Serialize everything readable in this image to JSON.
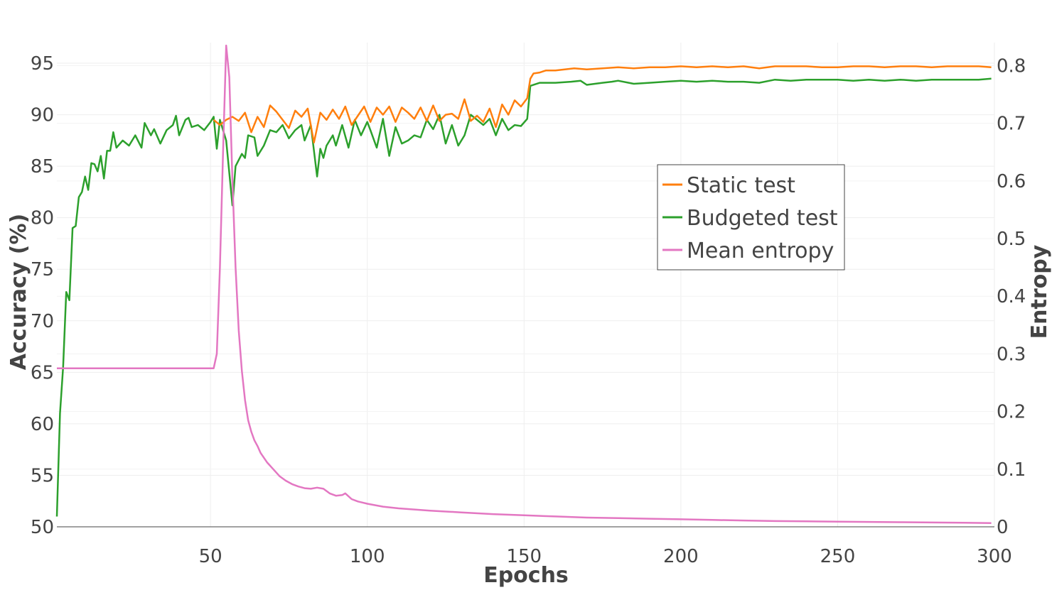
{
  "chart_data": {
    "type": "line",
    "xlabel": "Epochs",
    "ylabel_left": "Accuracy (%)",
    "ylabel_right": "Entropy",
    "xlim": [
      1,
      300
    ],
    "ylim_left": [
      50,
      97
    ],
    "ylim_right": [
      0,
      0.84
    ],
    "x_ticks": [
      50,
      100,
      150,
      200,
      250,
      300
    ],
    "y_ticks_left": [
      50,
      55,
      60,
      65,
      70,
      75,
      80,
      85,
      90,
      95
    ],
    "y_ticks_right": [
      0,
      0.1,
      0.2,
      0.3,
      0.4,
      0.5,
      0.6,
      0.7,
      0.8
    ],
    "grid": true,
    "legend_position": "center-right",
    "series": [
      {
        "name": "Static test",
        "axis": "left",
        "color": "#ff7f0e",
        "points": [
          [
            51,
            89.5
          ],
          [
            53,
            89.0
          ],
          [
            55,
            89.5
          ],
          [
            57,
            89.8
          ],
          [
            59,
            89.4
          ],
          [
            61,
            90.2
          ],
          [
            63,
            88.3
          ],
          [
            65,
            89.8
          ],
          [
            67,
            88.8
          ],
          [
            69,
            90.9
          ],
          [
            71,
            90.3
          ],
          [
            73,
            89.5
          ],
          [
            75,
            88.7
          ],
          [
            77,
            90.4
          ],
          [
            79,
            89.8
          ],
          [
            81,
            90.6
          ],
          [
            83,
            87.3
          ],
          [
            85,
            90.2
          ],
          [
            87,
            89.5
          ],
          [
            89,
            90.5
          ],
          [
            91,
            89.6
          ],
          [
            93,
            90.8
          ],
          [
            95,
            89.0
          ],
          [
            97,
            89.9
          ],
          [
            99,
            90.8
          ],
          [
            101,
            89.3
          ],
          [
            103,
            90.7
          ],
          [
            105,
            90.0
          ],
          [
            107,
            90.8
          ],
          [
            109,
            89.3
          ],
          [
            111,
            90.7
          ],
          [
            113,
            90.2
          ],
          [
            115,
            89.6
          ],
          [
            117,
            90.7
          ],
          [
            119,
            89.4
          ],
          [
            121,
            90.9
          ],
          [
            123,
            89.4
          ],
          [
            125,
            90.0
          ],
          [
            127,
            90.1
          ],
          [
            129,
            89.6
          ],
          [
            131,
            91.5
          ],
          [
            133,
            89.4
          ],
          [
            135,
            89.9
          ],
          [
            137,
            89.3
          ],
          [
            139,
            90.6
          ],
          [
            141,
            88.8
          ],
          [
            143,
            91.0
          ],
          [
            145,
            90.0
          ],
          [
            147,
            91.4
          ],
          [
            149,
            90.8
          ],
          [
            151,
            91.6
          ],
          [
            152,
            93.5
          ],
          [
            153,
            94.0
          ],
          [
            155,
            94.1
          ],
          [
            157,
            94.3
          ],
          [
            160,
            94.3
          ],
          [
            163,
            94.4
          ],
          [
            166,
            94.5
          ],
          [
            170,
            94.4
          ],
          [
            175,
            94.5
          ],
          [
            180,
            94.6
          ],
          [
            185,
            94.5
          ],
          [
            190,
            94.6
          ],
          [
            195,
            94.6
          ],
          [
            200,
            94.7
          ],
          [
            205,
            94.6
          ],
          [
            210,
            94.7
          ],
          [
            215,
            94.6
          ],
          [
            220,
            94.7
          ],
          [
            225,
            94.5
          ],
          [
            230,
            94.7
          ],
          [
            235,
            94.7
          ],
          [
            240,
            94.7
          ],
          [
            245,
            94.6
          ],
          [
            250,
            94.6
          ],
          [
            255,
            94.7
          ],
          [
            260,
            94.7
          ],
          [
            265,
            94.6
          ],
          [
            270,
            94.7
          ],
          [
            275,
            94.7
          ],
          [
            280,
            94.6
          ],
          [
            285,
            94.7
          ],
          [
            290,
            94.7
          ],
          [
            295,
            94.7
          ],
          [
            299,
            94.6
          ]
        ]
      },
      {
        "name": "Budgeted test",
        "axis": "left",
        "color": "#2ca02c",
        "points": [
          [
            1,
            51.0
          ],
          [
            2,
            61.0
          ],
          [
            3,
            65.5
          ],
          [
            4,
            72.8
          ],
          [
            5,
            72.0
          ],
          [
            6,
            79.0
          ],
          [
            7,
            79.2
          ],
          [
            8,
            82.0
          ],
          [
            9,
            82.5
          ],
          [
            10,
            84.0
          ],
          [
            11,
            82.7
          ],
          [
            12,
            85.3
          ],
          [
            13,
            85.2
          ],
          [
            14,
            84.5
          ],
          [
            15,
            86.0
          ],
          [
            16,
            83.8
          ],
          [
            17,
            86.5
          ],
          [
            18,
            86.5
          ],
          [
            19,
            88.3
          ],
          [
            20,
            86.8
          ],
          [
            22,
            87.5
          ],
          [
            24,
            87.0
          ],
          [
            26,
            88.0
          ],
          [
            28,
            86.8
          ],
          [
            29,
            89.2
          ],
          [
            31,
            88.0
          ],
          [
            32,
            88.6
          ],
          [
            34,
            87.2
          ],
          [
            36,
            88.5
          ],
          [
            38,
            89.0
          ],
          [
            39,
            89.9
          ],
          [
            40,
            88.0
          ],
          [
            42,
            89.5
          ],
          [
            43,
            89.7
          ],
          [
            44,
            88.8
          ],
          [
            46,
            89.0
          ],
          [
            48,
            88.5
          ],
          [
            50,
            89.3
          ],
          [
            51,
            89.8
          ],
          [
            52,
            86.7
          ],
          [
            53,
            89.5
          ],
          [
            55,
            87.5
          ],
          [
            57,
            81.2
          ],
          [
            58,
            85.0
          ],
          [
            60,
            86.2
          ],
          [
            61,
            85.8
          ],
          [
            62,
            88.0
          ],
          [
            64,
            87.8
          ],
          [
            65,
            86.0
          ],
          [
            67,
            87.0
          ],
          [
            69,
            88.5
          ],
          [
            71,
            88.3
          ],
          [
            73,
            89.0
          ],
          [
            75,
            87.7
          ],
          [
            77,
            88.5
          ],
          [
            79,
            89.0
          ],
          [
            80,
            87.5
          ],
          [
            82,
            89.0
          ],
          [
            84,
            84.0
          ],
          [
            85,
            86.7
          ],
          [
            86,
            85.8
          ],
          [
            87,
            87.0
          ],
          [
            89,
            88.0
          ],
          [
            90,
            87.0
          ],
          [
            92,
            89.0
          ],
          [
            94,
            86.8
          ],
          [
            96,
            89.5
          ],
          [
            98,
            88.0
          ],
          [
            100,
            89.3
          ],
          [
            101,
            88.5
          ],
          [
            103,
            86.8
          ],
          [
            105,
            89.6
          ],
          [
            107,
            86.0
          ],
          [
            109,
            88.8
          ],
          [
            111,
            87.2
          ],
          [
            113,
            87.5
          ],
          [
            115,
            88.0
          ],
          [
            117,
            87.8
          ],
          [
            119,
            89.5
          ],
          [
            121,
            88.6
          ],
          [
            123,
            90.0
          ],
          [
            125,
            87.2
          ],
          [
            127,
            89.0
          ],
          [
            129,
            87.0
          ],
          [
            131,
            88.0
          ],
          [
            133,
            90.0
          ],
          [
            135,
            89.5
          ],
          [
            137,
            89.0
          ],
          [
            139,
            89.6
          ],
          [
            141,
            88.0
          ],
          [
            143,
            89.6
          ],
          [
            145,
            88.5
          ],
          [
            147,
            89.0
          ],
          [
            149,
            88.9
          ],
          [
            151,
            89.6
          ],
          [
            152,
            92.8
          ],
          [
            155,
            93.1
          ],
          [
            160,
            93.1
          ],
          [
            165,
            93.2
          ],
          [
            168,
            93.3
          ],
          [
            170,
            92.9
          ],
          [
            175,
            93.1
          ],
          [
            178,
            93.2
          ],
          [
            180,
            93.3
          ],
          [
            185,
            93.0
          ],
          [
            190,
            93.1
          ],
          [
            195,
            93.2
          ],
          [
            200,
            93.3
          ],
          [
            205,
            93.2
          ],
          [
            210,
            93.3
          ],
          [
            215,
            93.2
          ],
          [
            220,
            93.2
          ],
          [
            225,
            93.1
          ],
          [
            230,
            93.4
          ],
          [
            235,
            93.3
          ],
          [
            240,
            93.4
          ],
          [
            245,
            93.4
          ],
          [
            250,
            93.4
          ],
          [
            255,
            93.3
          ],
          [
            260,
            93.4
          ],
          [
            265,
            93.3
          ],
          [
            270,
            93.4
          ],
          [
            275,
            93.3
          ],
          [
            280,
            93.4
          ],
          [
            285,
            93.4
          ],
          [
            290,
            93.4
          ],
          [
            295,
            93.4
          ],
          [
            299,
            93.5
          ]
        ]
      },
      {
        "name": "Mean entropy",
        "axis": "right",
        "color": "#e377c2",
        "points": [
          [
            1,
            0.275
          ],
          [
            10,
            0.275
          ],
          [
            20,
            0.275
          ],
          [
            30,
            0.275
          ],
          [
            40,
            0.275
          ],
          [
            50,
            0.275
          ],
          [
            51,
            0.275
          ],
          [
            52,
            0.3
          ],
          [
            53,
            0.45
          ],
          [
            54,
            0.65
          ],
          [
            55,
            0.835
          ],
          [
            56,
            0.78
          ],
          [
            57,
            0.6
          ],
          [
            58,
            0.45
          ],
          [
            59,
            0.34
          ],
          [
            60,
            0.27
          ],
          [
            61,
            0.22
          ],
          [
            62,
            0.185
          ],
          [
            63,
            0.165
          ],
          [
            64,
            0.15
          ],
          [
            65,
            0.14
          ],
          [
            66,
            0.128
          ],
          [
            68,
            0.112
          ],
          [
            70,
            0.1
          ],
          [
            72,
            0.088
          ],
          [
            74,
            0.08
          ],
          [
            76,
            0.074
          ],
          [
            78,
            0.07
          ],
          [
            80,
            0.067
          ],
          [
            82,
            0.066
          ],
          [
            84,
            0.068
          ],
          [
            86,
            0.066
          ],
          [
            88,
            0.058
          ],
          [
            90,
            0.054
          ],
          [
            92,
            0.055
          ],
          [
            93,
            0.058
          ],
          [
            95,
            0.048
          ],
          [
            97,
            0.044
          ],
          [
            100,
            0.04
          ],
          [
            105,
            0.035
          ],
          [
            110,
            0.032
          ],
          [
            120,
            0.028
          ],
          [
            130,
            0.025
          ],
          [
            140,
            0.022
          ],
          [
            150,
            0.02
          ],
          [
            160,
            0.018
          ],
          [
            170,
            0.016
          ],
          [
            180,
            0.015
          ],
          [
            190,
            0.014
          ],
          [
            200,
            0.013
          ],
          [
            210,
            0.012
          ],
          [
            220,
            0.011
          ],
          [
            230,
            0.01
          ],
          [
            240,
            0.0095
          ],
          [
            250,
            0.009
          ],
          [
            260,
            0.0085
          ],
          [
            270,
            0.008
          ],
          [
            280,
            0.0075
          ],
          [
            290,
            0.007
          ],
          [
            299,
            0.0065
          ]
        ]
      }
    ]
  }
}
